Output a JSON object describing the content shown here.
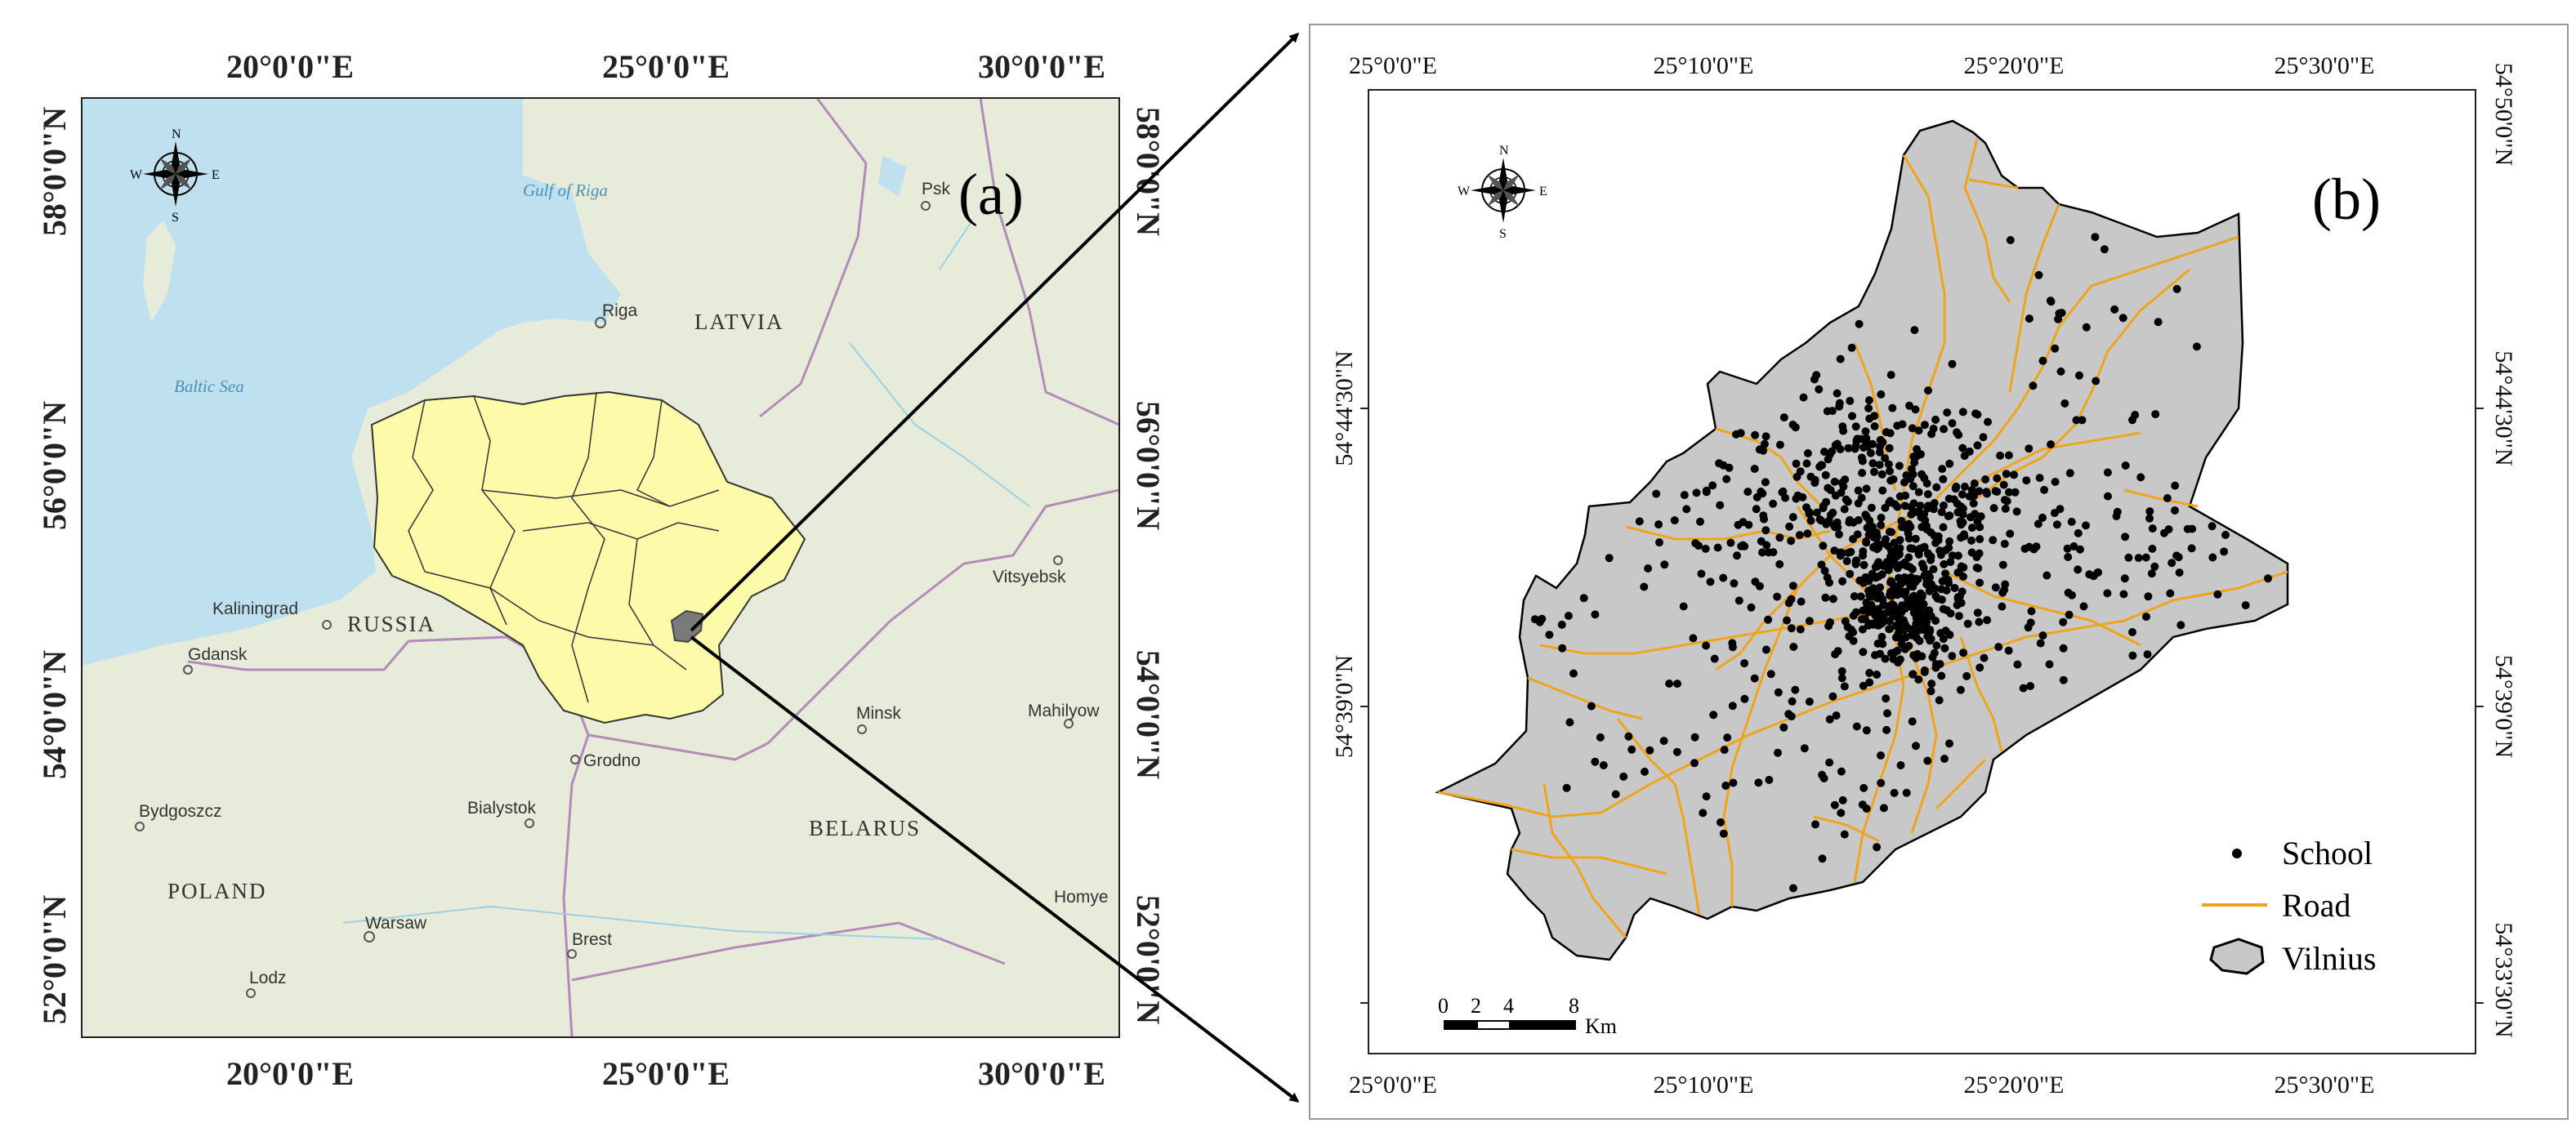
{
  "map_a": {
    "panel_label": "(a)",
    "top_ticks": [
      "20°0'0\"E",
      "25°0'0\"E",
      "30°0'0\"E"
    ],
    "bottom_ticks": [
      "20°0'0\"E",
      "25°0'0\"E",
      "30°0'0\"E"
    ],
    "left_ticks": [
      "58°0'0\"N",
      "56°0'0\"N",
      "54°0'0\"N",
      "52°0'0\"N"
    ],
    "right_ticks": [
      "58°0'0\"N",
      "56°0'0\"N",
      "54°0'0\"N",
      "52°0'0\"N"
    ],
    "countries": [
      "LATVIA",
      "RUSSIA",
      "BELARUS",
      "POLAND"
    ],
    "cities": [
      "Riga",
      "Kaliningrad",
      "Gdansk",
      "Grodno",
      "Minsk",
      "Bialystok",
      "Warsaw",
      "Brest",
      "Lodz",
      "Bydgoszcz",
      "Psk",
      "Vitsyebsk",
      "Mahilyow",
      "Homye"
    ],
    "water": [
      "Gulf of Riga",
      "Baltic Sea"
    ],
    "compass": [
      "N",
      "S",
      "W",
      "E"
    ],
    "colors": {
      "sea": "#bfe0ef",
      "land": "#e6ecd9",
      "lithuania": "#fdfbaa",
      "vilnius": "#7a7a7a"
    }
  },
  "map_b": {
    "panel_label": "(b)",
    "top_ticks": [
      "25°0'0\"E",
      "25°10'0\"E",
      "25°20'0\"E",
      "25°30'0\"E"
    ],
    "bottom_ticks": [
      "25°0'0\"E",
      "25°10'0\"E",
      "25°20'0\"E",
      "25°30'0\"E"
    ],
    "left_ticks": [
      "54°44'30\"N",
      "54°39'0\"N"
    ],
    "right_ticks": [
      "54°50'0\"N",
      "54°44'30\"N",
      "54°39'0\"N",
      "54°33'30\"N"
    ],
    "compass": [
      "N",
      "S",
      "W",
      "E"
    ],
    "scale_bar": {
      "labels": [
        "0",
        "2",
        "4",
        "8"
      ],
      "unit": "Km"
    },
    "legend": [
      {
        "label": "School",
        "symbol": "dot"
      },
      {
        "label": "Road",
        "symbol": "line"
      },
      {
        "label": "Vilnius",
        "symbol": "polygon"
      }
    ],
    "colors": {
      "city": "#c8c8c8",
      "road": "#f0a41c",
      "school": "#000000"
    }
  }
}
